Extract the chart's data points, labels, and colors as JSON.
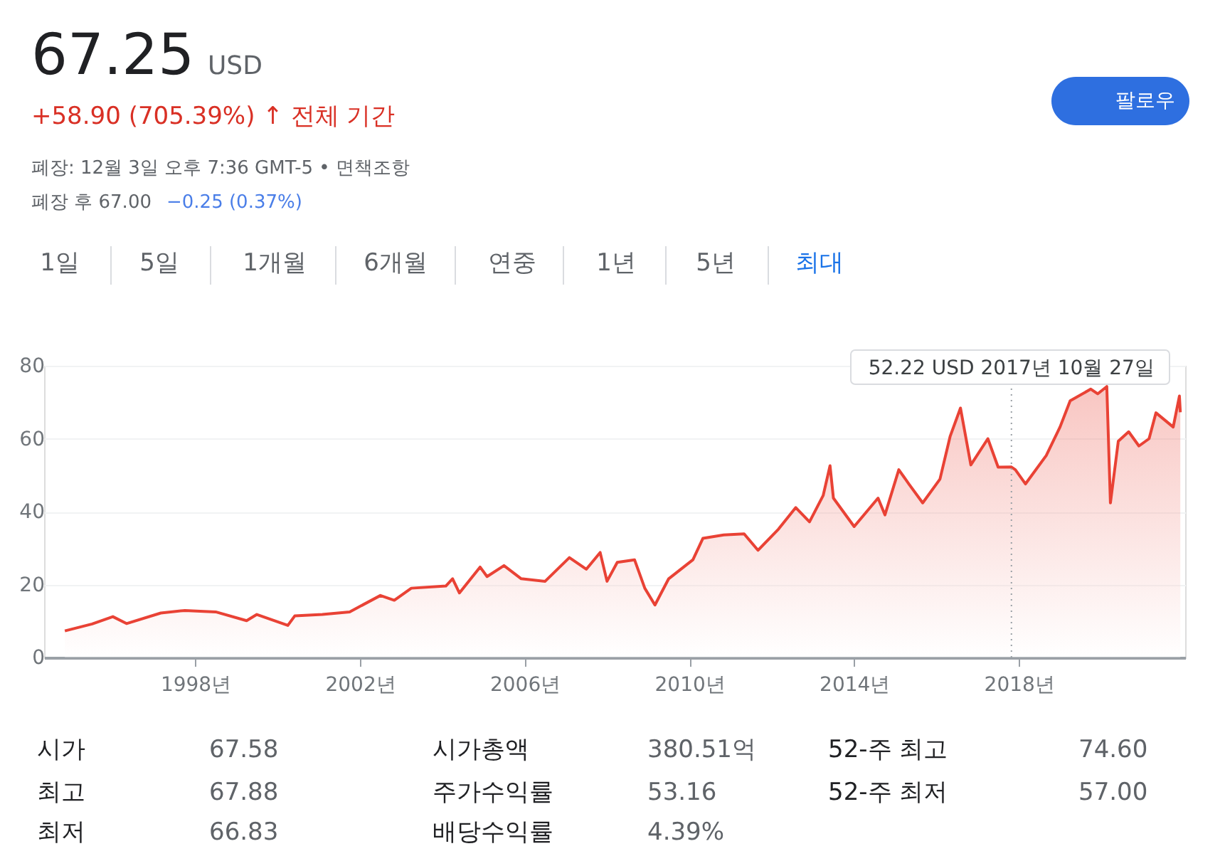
{
  "chart_data": {
    "type": "area",
    "title": "67.25",
    "subtitle": "+58.90 (705.39%) ↑ 전체 기간",
    "x": [
      "1994-11",
      "1995-07",
      "1996-01",
      "1996-05",
      "1997-03",
      "1997-10",
      "1998-07",
      "1999-04",
      "1999-07",
      "2000-04",
      "2000-06",
      "2001-02",
      "2001-10",
      "2002-07",
      "2002-11",
      "2003-04",
      "2004-02",
      "2004-04",
      "2004-06",
      "2004-12",
      "2005-02",
      "2005-07",
      "2005-12",
      "2006-07",
      "2007-02",
      "2007-07",
      "2007-11",
      "2008-01",
      "2008-04",
      "2008-09",
      "2008-12",
      "2009-03",
      "2009-07",
      "2010-02",
      "2010-05",
      "2010-11",
      "2011-05",
      "2011-09",
      "2012-03",
      "2012-08",
      "2012-12",
      "2013-04",
      "2013-06",
      "2013-07",
      "2014-01",
      "2014-08",
      "2014-10",
      "2015-02",
      "2015-05",
      "2015-09",
      "2016-02",
      "2016-05",
      "2016-08",
      "2016-11",
      "2017-04",
      "2017-07",
      "2017-10-27",
      "2017-12",
      "2018-03",
      "2018-09",
      "2019-01",
      "2019-04",
      "2019-10",
      "2019-12",
      "2020-02-20",
      "2020-03-23",
      "2020-06",
      "2020-09",
      "2020-12",
      "2021-03",
      "2021-05",
      "2021-10",
      "2021-11-25",
      "2021-12-03"
    ],
    "series": [
      {
        "color": "#e94235",
        "values": [
          7.3,
          9.2,
          11.2,
          9.3,
          12.2,
          12.9,
          12.5,
          10.1,
          11.8,
          8.8,
          11.4,
          11.8,
          12.5,
          17.0,
          15.7,
          19.0,
          19.6,
          21.6,
          17.7,
          24.8,
          22.2,
          25.2,
          21.6,
          20.9,
          27.4,
          24.2,
          28.8,
          20.9,
          26.1,
          26.8,
          19.0,
          14.4,
          21.6,
          26.8,
          32.7,
          33.6,
          33.9,
          29.4,
          35.2,
          41.1,
          37.2,
          44.4,
          52.6,
          43.7,
          35.9,
          43.7,
          39.1,
          51.5,
          47.6,
          42.4,
          48.9,
          60.6,
          68.4,
          52.8,
          60.0,
          52.2,
          52.22,
          51.5,
          47.6,
          55.4,
          63.2,
          70.4,
          73.6,
          72.3,
          74.3,
          42.4,
          59.3,
          61.9,
          58.0,
          60.0,
          67.1,
          63.2,
          71.7,
          67.25
        ]
      }
    ],
    "xlim": [
      "1994-05",
      "2022-01-15"
    ],
    "xticks": [
      {
        "value": "1998-01-01",
        "label": "1998년"
      },
      {
        "value": "2002-01-01",
        "label": "2002년"
      },
      {
        "value": "2006-01-01",
        "label": "2006년"
      },
      {
        "value": "2010-01-01",
        "label": "2010년"
      },
      {
        "value": "2014-01-01",
        "label": "2014년"
      },
      {
        "value": "2018-01-01",
        "label": "2018년"
      }
    ],
    "ylim": [
      0,
      80
    ],
    "yticks": [
      0,
      20,
      40,
      60,
      80
    ],
    "grid": "y",
    "marker": "none",
    "line_style": "solid",
    "ref_lines": [
      {
        "axis": "x",
        "value": "2017-10-27",
        "label": "52.22 USD  2017년 10월 27일",
        "color": "#9aa0a6",
        "line_style": "dotted"
      }
    ],
    "annotations": [
      "USD",
      "폐장: 12월 3일 오후 7:36 GMT-5 • 면책조항",
      "폐장 후 67.00",
      "−0.25 (0.37%)",
      "팔로우",
      "1일",
      "5일",
      "1개월",
      "6개월",
      "연중",
      "1년",
      "5년",
      "최대",
      "시가",
      "67.58",
      "최고",
      "67.88",
      "최저",
      "66.83",
      "시가총액",
      "380.51억",
      "주가수익률",
      "53.16",
      "배당수익률",
      "4.39%",
      "52-주 최고",
      "74.60",
      "52-주 최저",
      "57.00"
    ]
  }
}
